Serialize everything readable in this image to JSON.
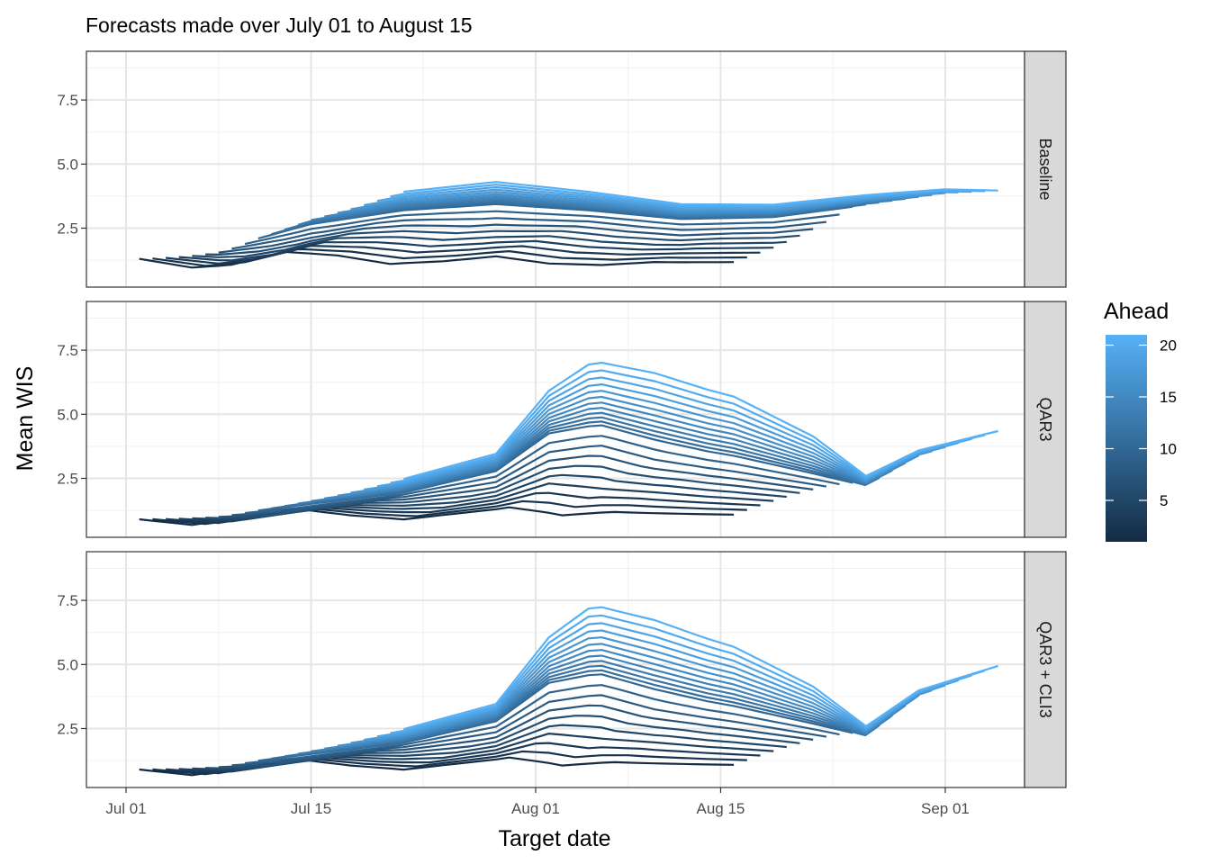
{
  "chart_data": {
    "type": "line",
    "title": "Forecasts made over July 01 to August 15",
    "xlabel": "Target date",
    "ylabel": "Mean WIS",
    "x_ticks": [
      "Jul 01",
      "Jul 15",
      "Aug 01",
      "Aug 15",
      "Sep 01"
    ],
    "x_tick_dates": [
      "2020-07-01",
      "2020-07-15",
      "2020-08-01",
      "2020-08-15",
      "2020-09-01"
    ],
    "y_ticks": [
      "2.5",
      "5.0",
      "7.5"
    ],
    "y_tick_values": [
      2.5,
      5.0,
      7.5
    ],
    "ylim": [
      0.2,
      9.4
    ],
    "xlim": [
      "2020-06-28",
      "2020-09-07"
    ],
    "grid": true,
    "legend": {
      "title": "Ahead",
      "position": "right",
      "ticks": [
        "5",
        "10",
        "15",
        "20"
      ],
      "tick_values": [
        5,
        10,
        15,
        20
      ],
      "range": [
        1,
        21
      ],
      "color_low": "#132B43",
      "color_high": "#56B1F7"
    },
    "forecast_dates": [
      "2020-07-01",
      "2020-08-15"
    ],
    "aheads": [
      1,
      21
    ],
    "panels": [
      {
        "label": "Baseline",
        "forecast_date_curve": [
          [
            "2020-07-01",
            1.3
          ],
          [
            "2020-07-05",
            0.9
          ],
          [
            "2020-07-08",
            1.0
          ],
          [
            "2020-07-12",
            1.5
          ],
          [
            "2020-07-16",
            1.3
          ],
          [
            "2020-07-20",
            0.9
          ],
          [
            "2020-07-24",
            1.0
          ],
          [
            "2020-07-28",
            1.2
          ],
          [
            "2020-08-01",
            0.9
          ],
          [
            "2020-08-05",
            0.85
          ],
          [
            "2020-08-09",
            1.0
          ],
          [
            "2020-08-13",
            1.0
          ],
          [
            "2020-08-15",
            1.0
          ]
        ],
        "target_date_curve": [
          [
            "2020-07-01",
            1.3
          ],
          [
            "2020-07-08",
            1.6
          ],
          [
            "2020-07-15",
            2.5
          ],
          [
            "2020-07-22",
            3.0
          ],
          [
            "2020-07-29",
            3.2
          ],
          [
            "2020-08-05",
            3.0
          ],
          [
            "2020-08-12",
            2.7
          ],
          [
            "2020-08-19",
            2.8
          ],
          [
            "2020-08-26",
            3.3
          ],
          [
            "2020-09-01",
            3.6
          ],
          [
            "2020-09-05",
            3.6
          ]
        ],
        "ahead_effect": [
          [
            "2020-07-01",
            0.0
          ],
          [
            "2020-07-15",
            0.06
          ],
          [
            "2020-07-29",
            0.09
          ],
          [
            "2020-08-12",
            0.06
          ],
          [
            "2020-08-26",
            0.04
          ],
          [
            "2020-09-05",
            0.03
          ]
        ]
      },
      {
        "label": "QAR3",
        "forecast_date_curve": [
          [
            "2020-07-01",
            0.9
          ],
          [
            "2020-07-05",
            0.65
          ],
          [
            "2020-07-09",
            1.0
          ],
          [
            "2020-07-13",
            1.3
          ],
          [
            "2020-07-17",
            1.0
          ],
          [
            "2020-07-21",
            0.8
          ],
          [
            "2020-07-25",
            1.0
          ],
          [
            "2020-07-29",
            1.2
          ],
          [
            "2020-08-02",
            0.75
          ],
          [
            "2020-08-06",
            0.9
          ],
          [
            "2020-08-10",
            0.9
          ],
          [
            "2020-08-15",
            0.9
          ]
        ],
        "target_date_curve": [
          [
            "2020-07-01",
            0.9
          ],
          [
            "2020-07-08",
            1.0
          ],
          [
            "2020-07-15",
            1.4
          ],
          [
            "2020-07-22",
            1.8
          ],
          [
            "2020-07-29",
            2.6
          ],
          [
            "2020-08-02",
            3.8
          ],
          [
            "2020-08-06",
            3.9
          ],
          [
            "2020-08-10",
            3.3
          ],
          [
            "2020-08-14",
            2.9
          ],
          [
            "2020-08-18",
            2.6
          ],
          [
            "2020-08-22",
            2.3
          ],
          [
            "2020-08-26",
            2.1
          ],
          [
            "2020-08-30",
            3.2
          ],
          [
            "2020-09-05",
            4.1
          ]
        ],
        "ahead_effect": [
          [
            "2020-07-01",
            0.0
          ],
          [
            "2020-07-15",
            0.04
          ],
          [
            "2020-07-29",
            0.07
          ],
          [
            "2020-08-05",
            0.25
          ],
          [
            "2020-08-10",
            0.27
          ],
          [
            "2020-08-16",
            0.24
          ],
          [
            "2020-08-22",
            0.15
          ],
          [
            "2020-08-26",
            0.04
          ],
          [
            "2020-09-05",
            0.02
          ]
        ]
      },
      {
        "label": "QAR3 + CLI3",
        "forecast_date_curve": [
          [
            "2020-07-01",
            0.9
          ],
          [
            "2020-07-05",
            0.65
          ],
          [
            "2020-07-09",
            1.0
          ],
          [
            "2020-07-13",
            1.3
          ],
          [
            "2020-07-17",
            1.0
          ],
          [
            "2020-07-21",
            0.8
          ],
          [
            "2020-07-25",
            1.0
          ],
          [
            "2020-07-29",
            1.2
          ],
          [
            "2020-08-02",
            0.75
          ],
          [
            "2020-08-06",
            0.9
          ],
          [
            "2020-08-10",
            0.9
          ],
          [
            "2020-08-15",
            0.9
          ]
        ],
        "target_date_curve": [
          [
            "2020-07-01",
            0.9
          ],
          [
            "2020-07-08",
            1.0
          ],
          [
            "2020-07-15",
            1.4
          ],
          [
            "2020-07-22",
            1.8
          ],
          [
            "2020-07-29",
            2.6
          ],
          [
            "2020-08-02",
            3.8
          ],
          [
            "2020-08-06",
            3.9
          ],
          [
            "2020-08-10",
            3.3
          ],
          [
            "2020-08-14",
            2.9
          ],
          [
            "2020-08-18",
            2.6
          ],
          [
            "2020-08-22",
            2.3
          ],
          [
            "2020-08-26",
            2.1
          ],
          [
            "2020-08-30",
            3.6
          ],
          [
            "2020-09-05",
            4.7
          ]
        ],
        "ahead_effect": [
          [
            "2020-07-01",
            0.0
          ],
          [
            "2020-07-15",
            0.04
          ],
          [
            "2020-07-29",
            0.07
          ],
          [
            "2020-08-05",
            0.27
          ],
          [
            "2020-08-10",
            0.28
          ],
          [
            "2020-08-16",
            0.24
          ],
          [
            "2020-08-22",
            0.15
          ],
          [
            "2020-08-26",
            0.04
          ],
          [
            "2020-09-05",
            0.02
          ]
        ]
      }
    ]
  }
}
